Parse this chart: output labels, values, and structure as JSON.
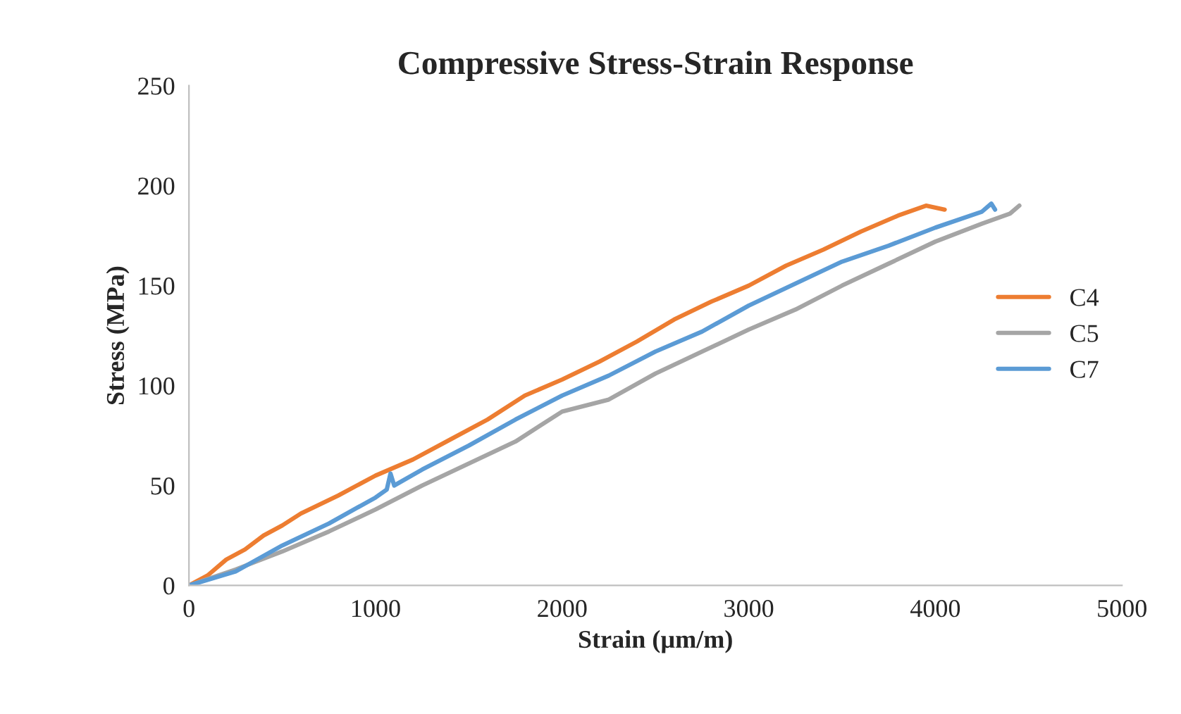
{
  "chart_data": {
    "type": "line",
    "title": "Compressive Stress-Strain Response",
    "xlabel": "Strain (µm/m)",
    "ylabel": "Stress (MPa)",
    "xlim": [
      0,
      5000
    ],
    "xticks": [
      0,
      1000,
      2000,
      3000,
      4000,
      5000
    ],
    "ylim": [
      0,
      250
    ],
    "yticks": [
      0,
      50,
      100,
      150,
      200,
      250
    ],
    "grid": false,
    "legend": "right",
    "marker": "none",
    "line_style": "solid",
    "series": [
      {
        "name": "C4",
        "color": "#ed7d31",
        "x": [
          0,
          100,
          200,
          300,
          400,
          500,
          600,
          800,
          1000,
          1200,
          1400,
          1600,
          1800,
          2000,
          2200,
          2400,
          2600,
          2800,
          3000,
          3200,
          3400,
          3600,
          3800,
          3950,
          4050
        ],
        "values": [
          0,
          5,
          13,
          18,
          25,
          30,
          36,
          45,
          55,
          63,
          73,
          83,
          95,
          103,
          112,
          122,
          133,
          142,
          150,
          160,
          168,
          177,
          185,
          190,
          188
        ]
      },
      {
        "name": "C5",
        "color": "#a5a5a5",
        "x": [
          0,
          250,
          500,
          750,
          1000,
          1250,
          1500,
          1750,
          2000,
          2250,
          2500,
          2750,
          3000,
          3250,
          3500,
          3750,
          4000,
          4250,
          4400,
          4450
        ],
        "values": [
          0,
          8,
          17,
          27,
          38,
          50,
          61,
          72,
          87,
          93,
          106,
          117,
          128,
          138,
          150,
          161,
          172,
          181,
          186,
          190
        ]
      },
      {
        "name": "C7",
        "color": "#5b9bd5",
        "x": [
          0,
          250,
          500,
          750,
          1000,
          1060,
          1080,
          1100,
          1250,
          1500,
          1750,
          2000,
          2250,
          2500,
          2750,
          3000,
          3250,
          3500,
          3750,
          4000,
          4250,
          4300,
          4320
        ],
        "values": [
          0,
          7,
          20,
          31,
          44,
          48,
          56,
          50,
          58,
          70,
          83,
          95,
          105,
          117,
          127,
          140,
          151,
          162,
          170,
          179,
          187,
          191,
          188
        ]
      }
    ]
  }
}
